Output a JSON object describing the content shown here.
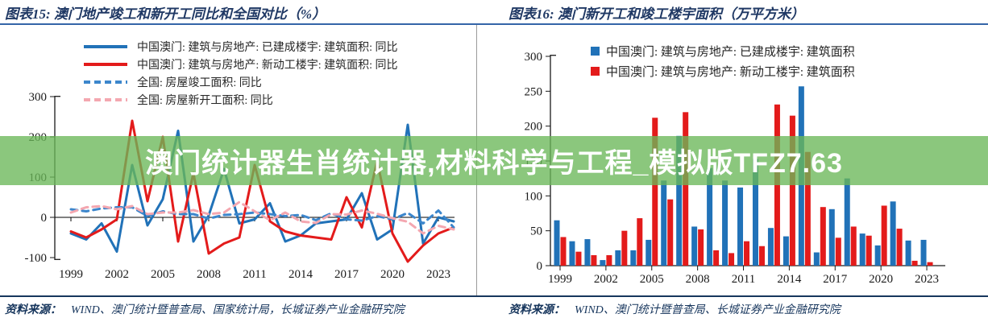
{
  "banner": {
    "text": "澳门统计器生肖统计器,材料科学与工程_模拟版TFZ7.63"
  },
  "colors": {
    "navy_title": "#1F3864",
    "title_rule_blue": "#3465A8",
    "source_rule_navy": "#17365D",
    "macau_blue": "#2172B8",
    "macau_red": "#E31B1B",
    "national_blue_dashed": "#3C86CC",
    "national_pink_dashed": "#F4A7B0",
    "banner_green": "rgba(106,183,88,0.78)"
  },
  "chart_data": [
    {
      "type": "line",
      "title": "图表15:  澳门地产竣工和新开工同比和全国对比（%）",
      "xlabel": "",
      "ylabel": "",
      "x": [
        1999,
        2000,
        2001,
        2002,
        2003,
        2004,
        2005,
        2006,
        2007,
        2008,
        2009,
        2010,
        2011,
        2012,
        2013,
        2014,
        2015,
        2016,
        2017,
        2018,
        2019,
        2020,
        2021,
        2022,
        2023,
        2024
      ],
      "xticks": [
        1999,
        2002,
        2005,
        2008,
        2011,
        2014,
        2017,
        2020,
        2023
      ],
      "yticks": [
        300,
        200,
        100,
        0,
        -100
      ],
      "ylim": [
        -100,
        300
      ],
      "grid": false,
      "legend_position": "top-left",
      "series": [
        {
          "name": "中国澳门: 建筑与房地产: 已建成楼宇: 建筑面积: 同比",
          "color": "#2172B8",
          "dash": false,
          "values": [
            -40,
            -55,
            -15,
            -85,
            130,
            -20,
            45,
            215,
            -60,
            5,
            120,
            -15,
            -5,
            35,
            -60,
            -45,
            -15,
            -10,
            -5,
            60,
            -55,
            -30,
            230,
            -65,
            0,
            -10
          ]
        },
        {
          "name": "中国澳门: 建筑与房地产: 新动工楼宇: 建筑面积: 同比",
          "color": "#E31B1B",
          "dash": false,
          "values": [
            -35,
            -50,
            -30,
            -5,
            240,
            40,
            200,
            -60,
            110,
            -90,
            -65,
            -50,
            130,
            -10,
            -35,
            -45,
            -50,
            -55,
            50,
            -25,
            140,
            -40,
            -110,
            -70,
            -40,
            -25
          ]
        },
        {
          "name": "全国: 房屋竣工面积: 同比",
          "color": "#3C86CC",
          "dash": true,
          "values": [
            20,
            15,
            22,
            25,
            25,
            3,
            15,
            8,
            8,
            -3,
            6,
            8,
            12,
            8,
            3,
            6,
            -7,
            10,
            -5,
            -8,
            3,
            -5,
            11,
            -15,
            17,
            -25
          ]
        },
        {
          "name": "全国: 房屋新开工面积: 同比",
          "color": "#F4A7B0",
          "dash": true,
          "values": [
            12,
            25,
            28,
            20,
            28,
            8,
            12,
            12,
            18,
            8,
            12,
            38,
            15,
            -7,
            12,
            -10,
            -14,
            8,
            7,
            17,
            9,
            -2,
            -11,
            -40,
            -21,
            -30
          ]
        }
      ]
    },
    {
      "type": "bar",
      "title": "图表16:  澳门新开工和竣工楼宇面积（万平方米）",
      "xlabel": "",
      "ylabel": "",
      "categories": [
        1999,
        2000,
        2001,
        2002,
        2003,
        2004,
        2005,
        2006,
        2007,
        2008,
        2009,
        2010,
        2011,
        2012,
        2013,
        2014,
        2015,
        2016,
        2017,
        2018,
        2019,
        2020,
        2021,
        2022,
        2023
      ],
      "xticks": [
        1999,
        2002,
        2005,
        2008,
        2011,
        2014,
        2017,
        2020,
        2023
      ],
      "yticks": [
        0,
        50,
        100,
        150,
        200,
        250,
        300
      ],
      "ylim": [
        0,
        300
      ],
      "grid": false,
      "legend_position": "top-center",
      "series": [
        {
          "name": "中国澳门: 建筑与房地产: 已建成楼宇: 建筑面积",
          "color": "#2172B8",
          "values": [
            65,
            35,
            38,
            8,
            22,
            22,
            37,
            122,
            186,
            56,
            140,
            122,
            112,
            153,
            54,
            42,
            257,
            19,
            81,
            125,
            46,
            29,
            92,
            36,
            37
          ]
        },
        {
          "name": "中国澳门: 建筑与房地产: 新动工楼宇: 建筑面积",
          "color": "#E31B1B",
          "values": [
            41,
            20,
            15,
            15,
            50,
            68,
            212,
            95,
            220,
            52,
            22,
            18,
            35,
            28,
            231,
            215,
            163,
            84,
            40,
            56,
            43,
            86,
            53,
            7,
            5
          ]
        }
      ]
    }
  ],
  "sources": [
    {
      "label": "资料来源：",
      "text": "WIND、澳门统计暨普查局、国家统计局，长城证券产业金融研究院"
    },
    {
      "label": "资料来源：",
      "text": "WIND、澳门统计暨普查局、长城证券产业金融研究院"
    }
  ]
}
